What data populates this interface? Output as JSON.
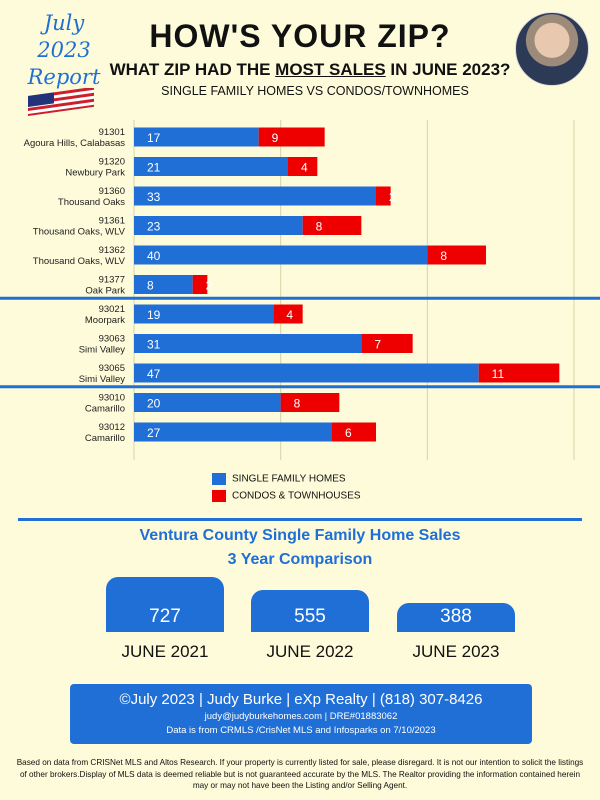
{
  "header": {
    "badge_line1": "July 2023",
    "badge_line2": "Report",
    "title": "HOW'S YOUR ZIP?",
    "subtitle_pre": "WHAT ZIP HAD THE ",
    "subtitle_em": "MOST SALES",
    "subtitle_post": " IN JUNE 2023?",
    "sub_subtitle": "SINGLE FAMILY HOMES VS CONDOS/TOWNHOMES"
  },
  "chart_data": [
    {
      "type": "bar",
      "orientation": "horizontal",
      "stacked": true,
      "categories": [
        {
          "zip": "91301",
          "area": "Agoura Hills, Calabasas"
        },
        {
          "zip": "91320",
          "area": "Newbury Park"
        },
        {
          "zip": "91360",
          "area": "Thousand Oaks"
        },
        {
          "zip": "91361",
          "area": "Thousand Oaks, WLV"
        },
        {
          "zip": "91362",
          "area": "Thousand Oaks, WLV"
        },
        {
          "zip": "91377",
          "area": "Oak Park"
        },
        {
          "zip": "93021",
          "area": "Moorpark"
        },
        {
          "zip": "93063",
          "area": "Simi Valley"
        },
        {
          "zip": "93065",
          "area": "Simi Valley"
        },
        {
          "zip": "93010",
          "area": "Camarillo"
        },
        {
          "zip": "93012",
          "area": "Camarillo"
        }
      ],
      "series": [
        {
          "name": "SINGLE FAMILY HOMES",
          "color": "#1f6fd6",
          "values": [
            17,
            21,
            33,
            23,
            40,
            8,
            19,
            31,
            47,
            20,
            27
          ]
        },
        {
          "name": "CONDOS & TOWNHOUSES",
          "color": "#ee0000",
          "values": [
            9,
            4,
            2,
            8,
            8,
            2,
            4,
            7,
            11,
            8,
            6
          ]
        }
      ],
      "xlim": [
        0,
        60
      ],
      "xticks": [
        0,
        20,
        40,
        60
      ],
      "grid": "vertical",
      "legend": "bottom-center"
    },
    {
      "type": "bar",
      "title": "Ventura County Single Family Home Sales",
      "subtitle": "3 Year Comparison",
      "categories": [
        "JUNE 2021",
        "JUNE 2022",
        "JUNE 2023"
      ],
      "values": [
        727,
        555,
        388
      ],
      "color": "#1f6fd6"
    }
  ],
  "footer": {
    "line1": "©July 2023  |  Judy Burke  |  eXp Realty  |  (818) 307-8426",
    "line2": "judy@judyburkehomes.com   |  DRE#01883062",
    "line3": "Data is from CRMLS /CrisNet MLS and Infosparks on 7/10/2023"
  },
  "disclaimer": "Based on data from CRISNet MLS and Altos Research. If your property is currently listed for sale, please disregard. It is not our intention to solicit the listings of other brokers.Display of MLS data is deemed reliable but is not guaranteed accurate by the MLS. The Realtor providing the information contained herein may or may not have been the Listing and/or Selling Agent."
}
